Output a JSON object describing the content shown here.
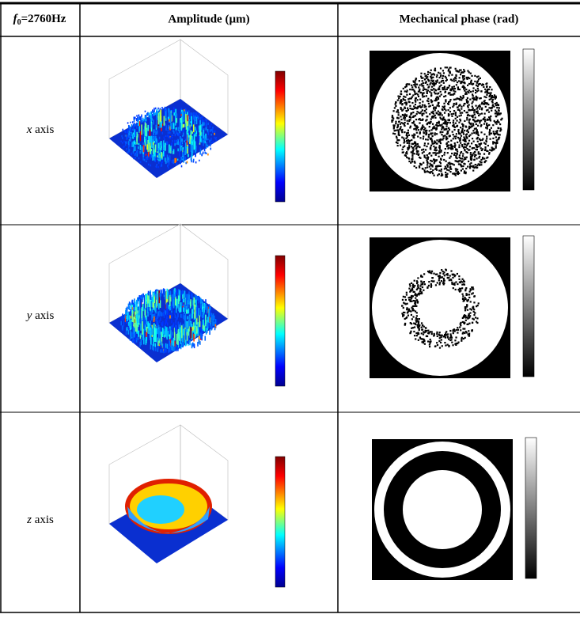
{
  "table": {
    "header": [
      {
        "symbol": "f",
        "subscript": "0",
        "text": "=2760Hz"
      },
      "Amplitude (µm)",
      "Mechanical phase (rad)"
    ],
    "rows": [
      {
        "variable": "x",
        "label": "axis"
      },
      {
        "variable": "y",
        "label": "axis"
      },
      {
        "variable": "z",
        "label": "axis"
      }
    ]
  }
}
